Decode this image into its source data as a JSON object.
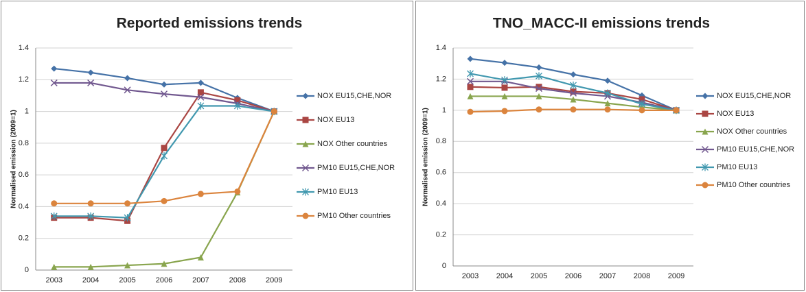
{
  "chart_data": [
    {
      "type": "line",
      "title": "Reported emissions trends",
      "y_label": "Normalised emission (2009=1)",
      "categories": [
        "2003",
        "2004",
        "2005",
        "2006",
        "2007",
        "2008",
        "2009"
      ],
      "ylim": [
        0,
        1.4
      ],
      "yticks": [
        0,
        0.2,
        0.4,
        0.6,
        0.8,
        1,
        1.2,
        1.4
      ],
      "grid": true,
      "legend": "right",
      "series": [
        {
          "name": "NOX EU15,CHE,NOR",
          "color": "#4572a7",
          "marker": "diamond",
          "values": [
            1.27,
            1.245,
            1.21,
            1.17,
            1.18,
            1.085,
            1.0
          ]
        },
        {
          "name": "NOX EU13",
          "color": "#aa4643",
          "marker": "square",
          "values": [
            0.33,
            0.33,
            0.31,
            0.77,
            1.12,
            1.07,
            1.0
          ]
        },
        {
          "name": "NOX Other countries",
          "color": "#89a54e",
          "marker": "triangle",
          "values": [
            0.02,
            0.02,
            0.03,
            0.04,
            0.08,
            0.49,
            1.0
          ]
        },
        {
          "name": "PM10 EU15,CHE,NOR",
          "color": "#71588f",
          "marker": "x",
          "values": [
            1.18,
            1.18,
            1.135,
            1.11,
            1.09,
            1.05,
            1.0
          ]
        },
        {
          "name": "PM10 EU13",
          "color": "#4198af",
          "marker": "star",
          "values": [
            0.34,
            0.34,
            0.33,
            0.72,
            1.035,
            1.035,
            1.0
          ]
        },
        {
          "name": "PM10 Other countries",
          "color": "#db843d",
          "marker": "circle",
          "values": [
            0.42,
            0.42,
            0.42,
            0.435,
            0.48,
            0.495,
            1.0
          ]
        }
      ]
    },
    {
      "type": "line",
      "title": "TNO_MACC-II emissions trends",
      "y_label": "Normalised emission (2009=1)",
      "categories": [
        "2003",
        "2004",
        "2005",
        "2006",
        "2007",
        "2008",
        "2009"
      ],
      "ylim": [
        0,
        1.4
      ],
      "yticks": [
        0,
        0.2,
        0.4,
        0.6,
        0.8,
        1,
        1.2,
        1.4
      ],
      "grid": true,
      "legend": "right",
      "series": [
        {
          "name": "NOX EU15,CHE,NOR",
          "color": "#4572a7",
          "marker": "diamond",
          "values": [
            1.33,
            1.305,
            1.275,
            1.23,
            1.19,
            1.095,
            1.0
          ]
        },
        {
          "name": "NOX EU13",
          "color": "#aa4643",
          "marker": "square",
          "values": [
            1.15,
            1.145,
            1.15,
            1.12,
            1.11,
            1.07,
            1.0
          ]
        },
        {
          "name": "NOX Other countries",
          "color": "#89a54e",
          "marker": "triangle",
          "values": [
            1.09,
            1.09,
            1.09,
            1.07,
            1.045,
            1.02,
            1.0
          ]
        },
        {
          "name": "PM10 EU15,CHE,NOR",
          "color": "#71588f",
          "marker": "x",
          "values": [
            1.185,
            1.185,
            1.14,
            1.11,
            1.09,
            1.05,
            1.0
          ]
        },
        {
          "name": "PM10 EU13",
          "color": "#4198af",
          "marker": "star",
          "values": [
            1.235,
            1.195,
            1.22,
            1.16,
            1.11,
            1.04,
            1.0
          ]
        },
        {
          "name": "PM10 Other countries",
          "color": "#db843d",
          "marker": "circle",
          "values": [
            0.99,
            0.995,
            1.005,
            1.005,
            1.005,
            1.0,
            1.0
          ]
        }
      ]
    }
  ]
}
